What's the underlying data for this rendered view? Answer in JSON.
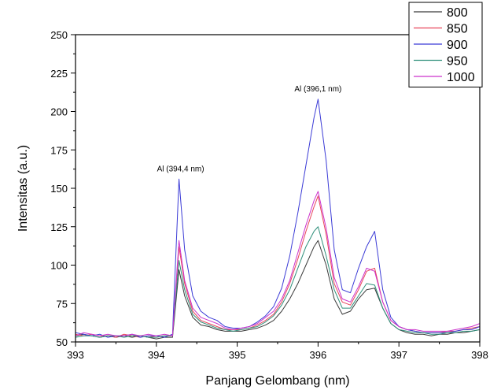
{
  "chart_data": {
    "type": "line",
    "xlabel": "Panjang Gelombang (nm)",
    "ylabel": "Intensitas (a.u.)",
    "xlim": [
      393,
      398
    ],
    "ylim": [
      50,
      250
    ],
    "xticks": [
      "393",
      "394",
      "395",
      "396",
      "397",
      "398"
    ],
    "yticks": [
      "50",
      "75",
      "100",
      "125",
      "150",
      "175",
      "200",
      "225",
      "250"
    ],
    "legend_position": "top-right",
    "annotations": [
      {
        "text": "Al (394,4 nm)",
        "x": 394.28,
        "y": 158
      },
      {
        "text": "Al (396,1 nm)",
        "x": 395.98,
        "y": 210
      }
    ],
    "x": [
      393.0,
      393.1,
      393.2,
      393.3,
      393.4,
      393.5,
      393.6,
      393.7,
      393.8,
      393.9,
      394.0,
      394.1,
      394.2,
      394.28,
      394.35,
      394.45,
      394.55,
      394.65,
      394.75,
      394.85,
      394.95,
      395.05,
      395.15,
      395.25,
      395.35,
      395.45,
      395.55,
      395.65,
      395.75,
      395.85,
      395.95,
      396.0,
      396.1,
      396.2,
      396.3,
      396.4,
      396.5,
      396.6,
      396.7,
      396.8,
      396.9,
      397.0,
      397.1,
      397.2,
      397.3,
      397.4,
      397.5,
      397.6,
      397.7,
      397.8,
      397.9,
      398.0
    ],
    "series": [
      {
        "name": "800",
        "color": "#3a3a3a",
        "values": [
          54,
          55,
          54,
          53,
          54,
          53,
          54,
          53,
          54,
          53,
          52,
          53,
          53,
          97,
          80,
          66,
          61,
          60,
          58,
          57,
          57,
          57,
          58,
          59,
          61,
          64,
          70,
          78,
          88,
          100,
          112,
          116,
          100,
          78,
          68,
          70,
          78,
          84,
          85,
          72,
          62,
          58,
          56,
          55,
          55,
          54,
          55,
          55,
          56,
          56,
          57,
          58
        ]
      },
      {
        "name": "850",
        "color": "#e8445a",
        "values": [
          55,
          54,
          55,
          54,
          54,
          53,
          55,
          54,
          53,
          54,
          53,
          54,
          54,
          112,
          88,
          70,
          64,
          62,
          60,
          58,
          58,
          58,
          59,
          61,
          64,
          68,
          76,
          88,
          104,
          122,
          138,
          145,
          120,
          88,
          76,
          74,
          84,
          96,
          98,
          76,
          64,
          60,
          58,
          57,
          56,
          56,
          56,
          57,
          57,
          58,
          59,
          60
        ]
      },
      {
        "name": "900",
        "color": "#3b3bd6",
        "values": [
          56,
          55,
          54,
          55,
          53,
          54,
          54,
          55,
          53,
          54,
          54,
          53,
          55,
          156,
          110,
          80,
          70,
          66,
          64,
          60,
          59,
          59,
          60,
          63,
          67,
          73,
          85,
          106,
          134,
          165,
          196,
          208,
          168,
          110,
          84,
          82,
          98,
          112,
          122,
          84,
          66,
          60,
          58,
          57,
          56,
          56,
          56,
          56,
          57,
          58,
          58,
          60
        ]
      },
      {
        "name": "950",
        "color": "#2e8f7a",
        "values": [
          53,
          54,
          54,
          53,
          54,
          54,
          53,
          54,
          54,
          53,
          53,
          54,
          54,
          103,
          84,
          68,
          63,
          61,
          59,
          58,
          57,
          58,
          59,
          60,
          63,
          67,
          74,
          84,
          98,
          112,
          122,
          125,
          106,
          84,
          72,
          72,
          80,
          88,
          87,
          72,
          62,
          58,
          57,
          56,
          56,
          55,
          55,
          56,
          56,
          57,
          57,
          58
        ]
      },
      {
        "name": "1000",
        "color": "#cc33cc",
        "values": [
          54,
          56,
          55,
          54,
          55,
          54,
          54,
          55,
          54,
          55,
          54,
          55,
          54,
          116,
          90,
          72,
          66,
          64,
          62,
          59,
          58,
          59,
          60,
          62,
          66,
          70,
          78,
          90,
          108,
          126,
          142,
          148,
          124,
          92,
          78,
          76,
          86,
          98,
          96,
          76,
          64,
          60,
          58,
          58,
          57,
          57,
          57,
          57,
          58,
          59,
          60,
          62
        ]
      }
    ]
  }
}
